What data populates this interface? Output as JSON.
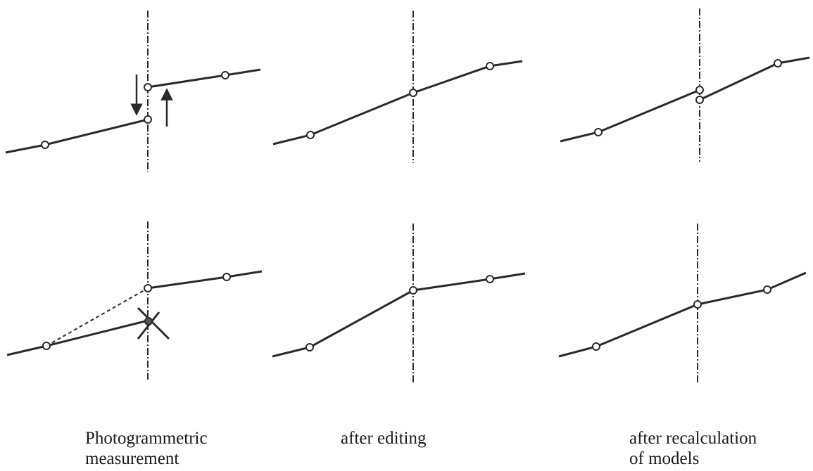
{
  "captions": [
    {
      "lines": [
        "Photogrammetric",
        "measurement"
      ]
    },
    {
      "lines": [
        "after editing"
      ]
    },
    {
      "lines": [
        "after recalculation",
        "of models"
      ]
    }
  ],
  "colors": {
    "line": "#2a2a2a",
    "background": "#ffffff"
  }
}
